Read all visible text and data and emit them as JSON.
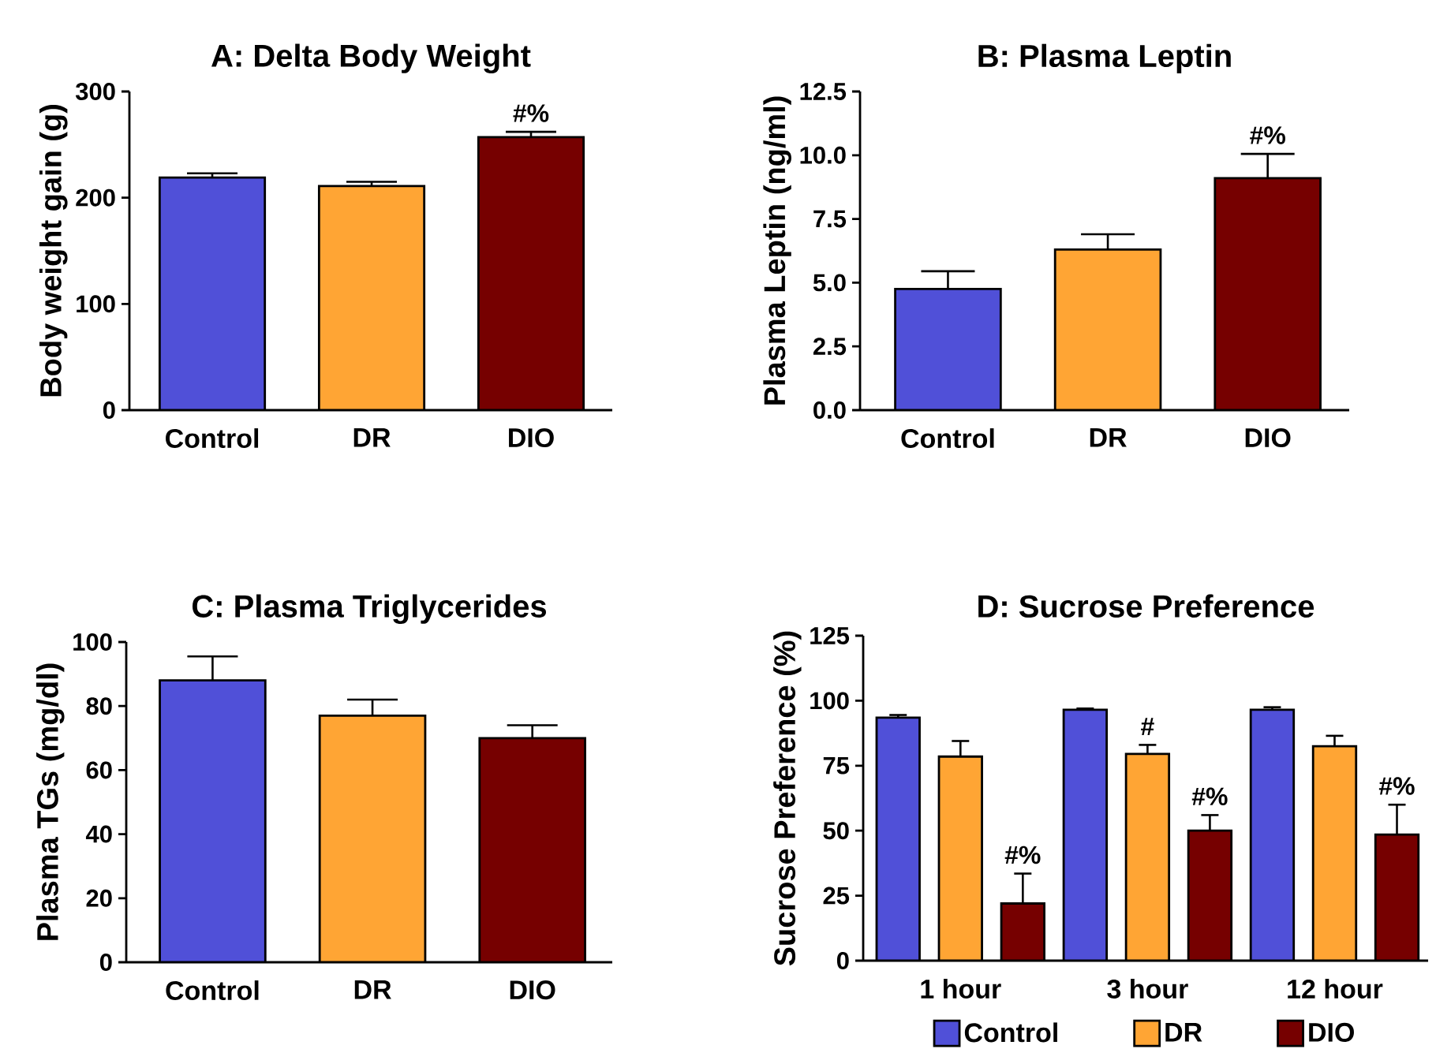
{
  "chart_data": [
    {
      "type": "bar",
      "title": "A: Delta Body Weight",
      "ylabel": "Body weight gain (g)",
      "categories": [
        "Control",
        "DR",
        "DIO"
      ],
      "values": [
        219,
        211,
        257
      ],
      "errors": [
        4,
        4,
        5
      ],
      "colors": [
        "#5050d8",
        "#ffa534",
        "#760000"
      ],
      "ylim": [
        0,
        300
      ],
      "yticks": [
        0,
        100,
        200,
        300
      ],
      "annotations": [
        {
          "text": "#%",
          "x": "DIO",
          "y": 262
        }
      ]
    },
    {
      "type": "bar",
      "title": "B: Plasma Leptin",
      "ylabel": "Plasma Leptin (ng/ml)",
      "categories": [
        "Control",
        "DR",
        "DIO"
      ],
      "values": [
        4.75,
        6.3,
        9.1
      ],
      "errors": [
        0.7,
        0.6,
        0.95
      ],
      "colors": [
        "#5050d8",
        "#ffa534",
        "#760000"
      ],
      "ylim": [
        0,
        12.5
      ],
      "yticks": [
        {
          "value": 0,
          "label": "0.0"
        },
        2.5,
        {
          "value": 5,
          "label": "5.0"
        },
        7.5,
        {
          "value": 10,
          "label": "10.0"
        },
        12.5
      ],
      "annotations": [
        {
          "text": "#%",
          "x": "DIO",
          "y": 10.05
        }
      ]
    },
    {
      "type": "bar",
      "title": "C: Plasma Triglycerides",
      "ylabel": "Plasma TGs (mg/dl)",
      "categories": [
        "Control",
        "DR",
        "DIO"
      ],
      "values": [
        88,
        77,
        70
      ],
      "errors": [
        7.5,
        5,
        4
      ],
      "colors": [
        "#5050d8",
        "#ffa534",
        "#760000"
      ],
      "ylim": [
        0,
        100
      ],
      "yticks": [
        0,
        20,
        40,
        60,
        80,
        100
      ]
    },
    {
      "type": "bar",
      "title": "D: Sucrose Preference",
      "ylabel": "Sucrose Preference (%)",
      "categories": [
        "1 hour",
        "3 hour",
        "12 hour"
      ],
      "ylim": [
        0,
        125
      ],
      "yticks": [
        0,
        25,
        50,
        75,
        100,
        125
      ],
      "legend": "bottom",
      "series": [
        {
          "name": "Control",
          "color": "#5050d8",
          "values": [
            93.5,
            96.5,
            96.5
          ],
          "errors": [
            1,
            0.5,
            1
          ]
        },
        {
          "name": "DR",
          "color": "#ffa534",
          "values": [
            78.5,
            79.5,
            82.5
          ],
          "errors": [
            6,
            3.5,
            4
          ]
        },
        {
          "name": "DIO",
          "color": "#760000",
          "values": [
            22,
            50,
            48.5
          ],
          "errors": [
            11.5,
            6,
            11.5
          ]
        }
      ],
      "annotations": [
        "#%",
        {
          "text": "#",
          "x": "3 hour",
          "y": 83
        },
        "#%",
        "#%"
      ]
    }
  ]
}
